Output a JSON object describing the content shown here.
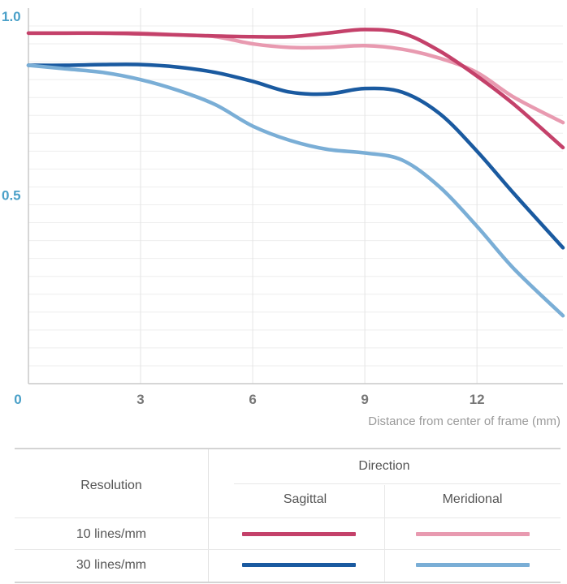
{
  "chart_data": {
    "type": "line",
    "xlabel": "Distance from center of frame (mm)",
    "ylabel": "",
    "xlim": [
      0,
      14.3
    ],
    "ylim": [
      0,
      1.0
    ],
    "x_ticks": [
      {
        "value": 0,
        "label": "0"
      },
      {
        "value": 3,
        "label": "3"
      },
      {
        "value": 6,
        "label": "6"
      },
      {
        "value": 9,
        "label": "9"
      },
      {
        "value": 12,
        "label": "12"
      }
    ],
    "y_ticks": [
      {
        "value": 1.0,
        "label": "1.0"
      },
      {
        "value": 0.5,
        "label": "0.5"
      }
    ],
    "grid": true,
    "series": [
      {
        "name": "10 lines/mm Meridional",
        "color": "#e89ab0",
        "x": [
          0,
          1,
          2,
          3,
          4,
          5,
          6,
          7,
          8,
          9,
          10,
          11,
          12,
          13,
          14.3
        ],
        "y": [
          0.98,
          0.98,
          0.98,
          0.98,
          0.975,
          0.97,
          0.95,
          0.94,
          0.94,
          0.945,
          0.935,
          0.91,
          0.87,
          0.8,
          0.73
        ]
      },
      {
        "name": "10 lines/mm Sagittal",
        "color": "#c4416a",
        "x": [
          0,
          1,
          2,
          3,
          4,
          5,
          6,
          7,
          8,
          9,
          10,
          11,
          12,
          13,
          14.3
        ],
        "y": [
          0.98,
          0.98,
          0.98,
          0.978,
          0.975,
          0.972,
          0.97,
          0.97,
          0.98,
          0.99,
          0.98,
          0.93,
          0.86,
          0.78,
          0.66
        ]
      },
      {
        "name": "30 lines/mm Sagittal",
        "color": "#1a5aa0",
        "x": [
          0,
          1,
          2,
          3,
          4,
          5,
          6,
          7,
          8,
          9,
          10,
          11,
          12,
          13,
          14.3
        ],
        "y": [
          0.89,
          0.89,
          0.892,
          0.892,
          0.885,
          0.87,
          0.845,
          0.815,
          0.81,
          0.825,
          0.815,
          0.755,
          0.65,
          0.53,
          0.38
        ]
      },
      {
        "name": "30 lines/mm Meridional",
        "color": "#7aaed6",
        "x": [
          0,
          1,
          2,
          3,
          4,
          5,
          6,
          7,
          8,
          9,
          10,
          11,
          12,
          13,
          14.3
        ],
        "y": [
          0.89,
          0.88,
          0.87,
          0.85,
          0.82,
          0.78,
          0.72,
          0.68,
          0.655,
          0.645,
          0.625,
          0.55,
          0.44,
          0.32,
          0.19
        ]
      }
    ]
  },
  "legend": {
    "resolution_header": "Resolution",
    "direction_header": "Direction",
    "sagittal_label": "Sagittal",
    "meridional_label": "Meridional",
    "rows": [
      {
        "label": "10 lines/mm",
        "sagittal_color": "#c4416a",
        "meridional_color": "#e89ab0"
      },
      {
        "label": "30 lines/mm",
        "sagittal_color": "#1a5aa0",
        "meridional_color": "#7aaed6"
      }
    ]
  }
}
